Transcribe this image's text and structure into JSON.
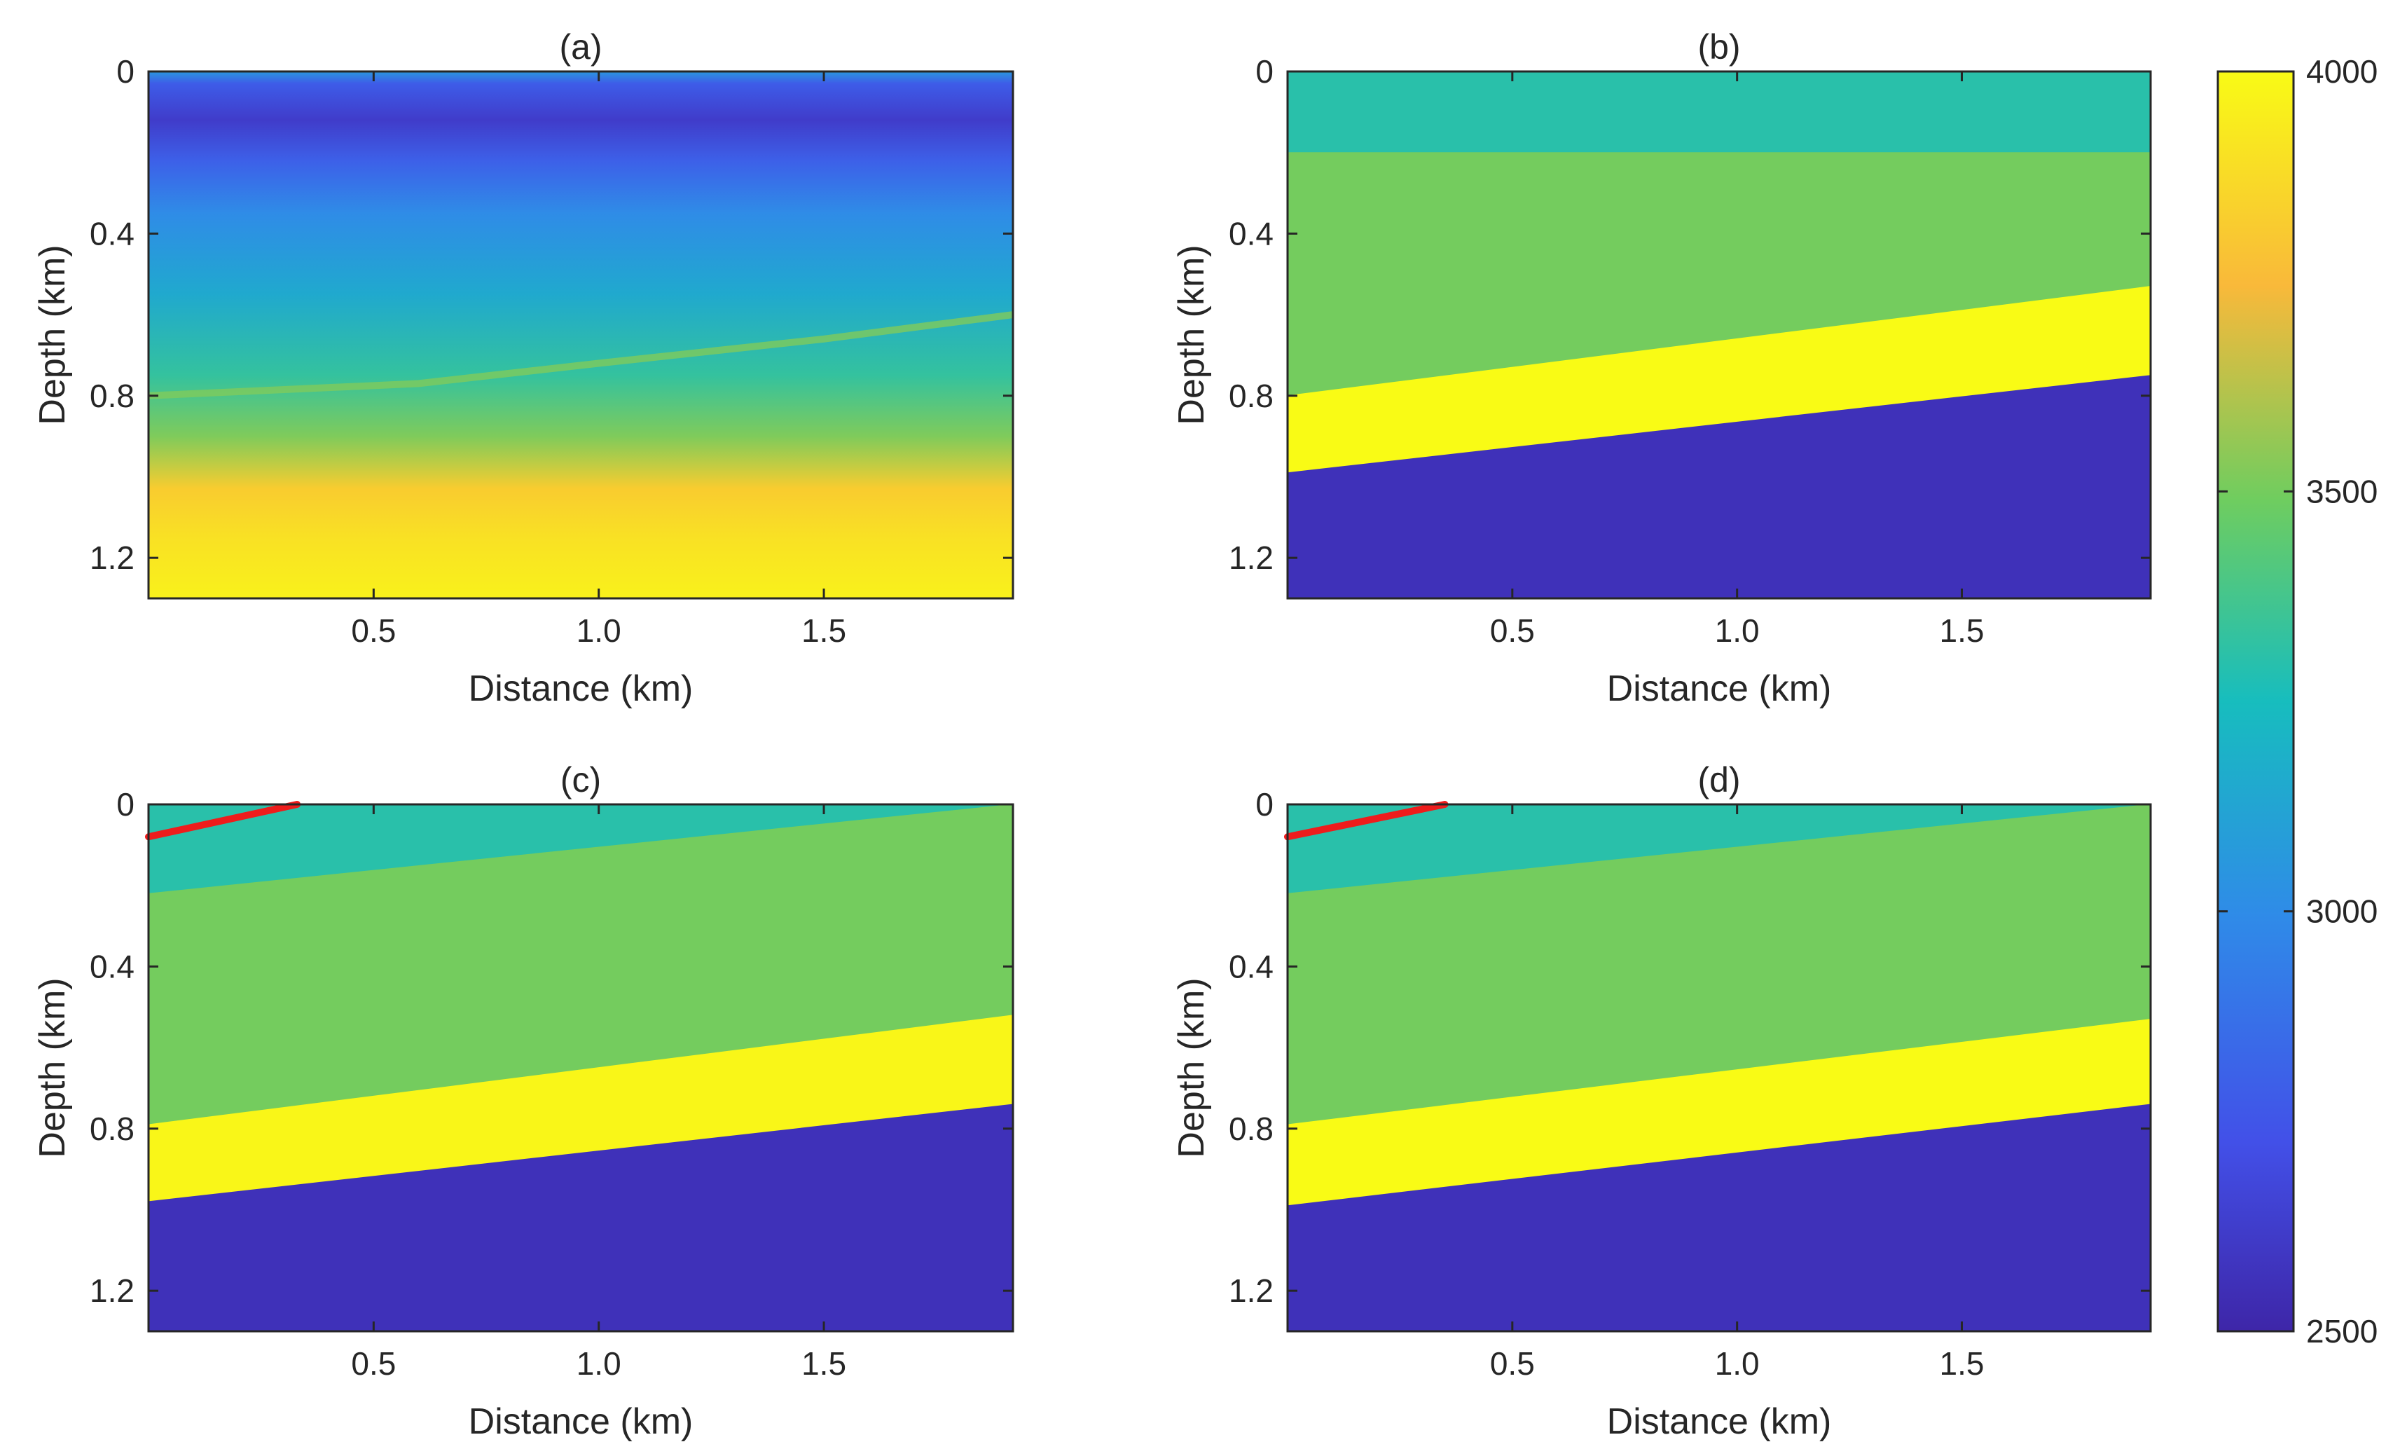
{
  "figure": {
    "description_units": "Velocity colour scale",
    "colorbar": {
      "min": 2500,
      "max": 4000,
      "tick_values": [
        2500,
        3000,
        3500,
        4000
      ],
      "tick_labels": [
        "2500",
        "3000",
        "3500",
        "4000"
      ],
      "colors": {
        "low": "#3e26a8",
        "blue": "#2f8be8",
        "cyan": "#17bdbe",
        "green": "#6fcd5f",
        "orange": "#f9b93a",
        "high": "#f9fb15"
      }
    }
  },
  "chart_data": [
    {
      "type": "heatmap",
      "panel": "a",
      "title": "(a)",
      "xlabel": "Distance (km)",
      "ylabel": "Depth (km)",
      "xlim": [
        0.0,
        1.92
      ],
      "ylim": [
        1.3,
        0.0
      ],
      "x_ticks": [
        0.5,
        1.0,
        1.5
      ],
      "x_tick_labels": [
        "0.5",
        "1.0",
        "1.5"
      ],
      "y_ticks": [
        0,
        0.4,
        0.8,
        1.2
      ],
      "y_tick_labels": [
        "0",
        "0.4",
        "0.8",
        "1.2"
      ],
      "clim": [
        2500,
        4000
      ],
      "depth_profile": [
        {
          "depth": 0.0,
          "value": 3050
        },
        {
          "depth": 0.03,
          "value": 2780
        },
        {
          "depth": 0.12,
          "value": 2620
        },
        {
          "depth": 0.22,
          "value": 2800
        },
        {
          "depth": 0.35,
          "value": 3000
        },
        {
          "depth": 0.55,
          "value": 3150
        },
        {
          "depth": 0.75,
          "value": 3330
        },
        {
          "depth": 0.9,
          "value": 3520
        },
        {
          "depth": 1.03,
          "value": 3820
        },
        {
          "depth": 1.15,
          "value": 3900
        },
        {
          "depth": 1.3,
          "value": 3960
        }
      ],
      "reflector": {
        "x": [
          0.0,
          0.6,
          1.0,
          1.5,
          1.92
        ],
        "depth": [
          0.8,
          0.77,
          0.72,
          0.66,
          0.6
        ],
        "value": 3520
      },
      "annotation_line": null
    },
    {
      "type": "heatmap",
      "panel": "b",
      "title": "(b)",
      "xlabel": "Distance (km)",
      "ylabel": "Depth (km)",
      "xlim": [
        0.0,
        1.92
      ],
      "ylim": [
        1.3,
        0.0
      ],
      "x_ticks": [
        0.5,
        1.0,
        1.5
      ],
      "x_tick_labels": [
        "0.5",
        "1.0",
        "1.5"
      ],
      "y_ticks": [
        0,
        0.4,
        0.8,
        1.2
      ],
      "y_tick_labels": [
        "0",
        "0.4",
        "0.8",
        "1.2"
      ],
      "clim": [
        2500,
        4000
      ],
      "layers": [
        {
          "name": "top layer",
          "value": 3300,
          "top_left": 0.0,
          "top_right": 0.0,
          "bottom_left": 0.2,
          "bottom_right": 0.2
        },
        {
          "name": "upper layer",
          "value": 3500,
          "top_left": 0.2,
          "top_right": 0.2,
          "bottom_left": 0.8,
          "bottom_right": 0.53
        },
        {
          "name": "high-velocity layer",
          "value": 4000,
          "top_left": 0.8,
          "top_right": 0.53,
          "bottom_left": 0.99,
          "bottom_right": 0.75
        },
        {
          "name": "basement",
          "value": 2560,
          "top_left": 0.99,
          "top_right": 0.75,
          "bottom_left": 1.3,
          "bottom_right": 1.3
        }
      ],
      "annotation_line": null
    },
    {
      "type": "heatmap",
      "panel": "c",
      "title": "(c)",
      "xlabel": "Distance (km)",
      "ylabel": "Depth (km)",
      "xlim": [
        0.0,
        1.92
      ],
      "ylim": [
        1.3,
        0.0
      ],
      "x_ticks": [
        0.5,
        1.0,
        1.5
      ],
      "x_tick_labels": [
        "0.5",
        "1.0",
        "1.5"
      ],
      "y_ticks": [
        0,
        0.4,
        0.8,
        1.2
      ],
      "y_tick_labels": [
        "0",
        "0.4",
        "0.8",
        "1.2"
      ],
      "clim": [
        2500,
        4000
      ],
      "layers": [
        {
          "name": "surface wedge",
          "value": 2950,
          "top_left": 0.0,
          "top_right": 0.0,
          "bottom_left": 0.08,
          "bottom_right": 0.0,
          "x_end": 0.33
        },
        {
          "name": "top layer",
          "value": 3300,
          "top_left": 0.0,
          "top_right": 0.0,
          "bottom_left": 0.22,
          "bottom_right": 0.0
        },
        {
          "name": "upper layer",
          "value": 3500,
          "top_left": 0.22,
          "top_right": 0.0,
          "bottom_left": 0.79,
          "bottom_right": 0.52
        },
        {
          "name": "high-velocity layer",
          "value": 3980,
          "top_left": 0.79,
          "top_right": 0.52,
          "bottom_left": 0.98,
          "bottom_right": 0.74
        },
        {
          "name": "basement",
          "value": 2560,
          "top_left": 0.98,
          "top_right": 0.74,
          "bottom_left": 1.3,
          "bottom_right": 1.3
        }
      ],
      "annotation_line": {
        "x": [
          0.0,
          0.33
        ],
        "depth": [
          0.08,
          0.0
        ],
        "color": "#ee1c1c"
      }
    },
    {
      "type": "heatmap",
      "panel": "d",
      "title": "(d)",
      "xlabel": "Distance (km)",
      "ylabel": "Depth (km)",
      "xlim": [
        0.0,
        1.92
      ],
      "ylim": [
        1.3,
        0.0
      ],
      "x_ticks": [
        0.5,
        1.0,
        1.5
      ],
      "x_tick_labels": [
        "0.5",
        "1.0",
        "1.5"
      ],
      "y_ticks": [
        0,
        0.4,
        0.8,
        1.2
      ],
      "y_tick_labels": [
        "0",
        "0.4",
        "0.8",
        "1.2"
      ],
      "clim": [
        2500,
        4000
      ],
      "layers": [
        {
          "name": "surface wedge",
          "value": 2950,
          "top_left": 0.0,
          "top_right": 0.0,
          "bottom_left": 0.08,
          "bottom_right": 0.0,
          "x_end": 0.35
        },
        {
          "name": "top layer",
          "value": 3300,
          "top_left": 0.0,
          "top_right": 0.0,
          "bottom_left": 0.22,
          "bottom_right": 0.0
        },
        {
          "name": "upper layer",
          "value": 3500,
          "top_left": 0.22,
          "top_right": 0.0,
          "bottom_left": 0.79,
          "bottom_right": 0.53
        },
        {
          "name": "high-velocity layer",
          "value": 4000,
          "top_left": 0.79,
          "top_right": 0.53,
          "bottom_left": 0.99,
          "bottom_right": 0.74
        },
        {
          "name": "basement",
          "value": 2560,
          "top_left": 0.99,
          "top_right": 0.74,
          "bottom_left": 1.3,
          "bottom_right": 1.3
        }
      ],
      "annotation_line": {
        "x": [
          0.0,
          0.35
        ],
        "depth": [
          0.08,
          0.0
        ],
        "color": "#ee1c1c"
      }
    }
  ]
}
